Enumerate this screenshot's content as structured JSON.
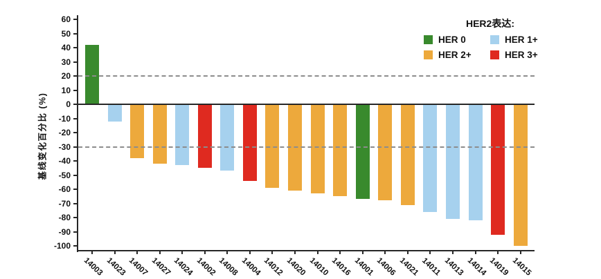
{
  "chart_data": {
    "type": "bar",
    "subtype": "waterfall",
    "title": "",
    "xlabel": "",
    "ylabel": "基线变化百分比 (%)",
    "ylim": [
      -100,
      60
    ],
    "y_ticks": [
      60,
      50,
      40,
      30,
      20,
      10,
      0,
      -10,
      -20,
      -30,
      -40,
      -50,
      -60,
      -70,
      -80,
      -90,
      -100
    ],
    "grid": false,
    "x_tick_rotation": 45,
    "reference_lines": [
      {
        "y": 20,
        "style": "dashed",
        "color": "#8c8c8c"
      },
      {
        "y": -30,
        "style": "dashed",
        "color": "#8c8c8c"
      },
      {
        "y": 0,
        "style": "solid",
        "color": "#262626"
      }
    ],
    "legend": {
      "title": "HER2表达:",
      "position": "top-right",
      "items": [
        {
          "label": "HER 0",
          "color": "#398a2d"
        },
        {
          "label": "HER 1+",
          "color": "#a6d1ee"
        },
        {
          "label": "HER 2+",
          "color": "#eda93c"
        },
        {
          "label": "HER 3+",
          "color": "#df2a20"
        }
      ]
    },
    "bars": [
      {
        "id": "14003",
        "value": 42,
        "group": "HER 0"
      },
      {
        "id": "14023",
        "value": -12,
        "group": "HER 1+"
      },
      {
        "id": "14007",
        "value": -38,
        "group": "HER 2+"
      },
      {
        "id": "14027",
        "value": -42,
        "group": "HER 2+"
      },
      {
        "id": "14024",
        "value": -43,
        "group": "HER 1+"
      },
      {
        "id": "14002",
        "value": -45,
        "group": "HER 3+"
      },
      {
        "id": "14008",
        "value": -47,
        "group": "HER 1+"
      },
      {
        "id": "14004",
        "value": -54,
        "group": "HER 3+"
      },
      {
        "id": "14012",
        "value": -59,
        "group": "HER 2+"
      },
      {
        "id": "14020",
        "value": -61,
        "group": "HER 2+"
      },
      {
        "id": "14010",
        "value": -63,
        "group": "HER 2+"
      },
      {
        "id": "14016",
        "value": -65,
        "group": "HER 2+"
      },
      {
        "id": "14001",
        "value": -67,
        "group": "HER 0"
      },
      {
        "id": "14006",
        "value": -68,
        "group": "HER 2+"
      },
      {
        "id": "14021",
        "value": -71,
        "group": "HER 2+"
      },
      {
        "id": "14011",
        "value": -76,
        "group": "HER 1+"
      },
      {
        "id": "14013",
        "value": -81,
        "group": "HER 1+"
      },
      {
        "id": "14014",
        "value": -82,
        "group": "HER 1+"
      },
      {
        "id": "14019",
        "value": -92,
        "group": "HER 3+"
      },
      {
        "id": "14015",
        "value": -100,
        "group": "HER 2+"
      }
    ]
  }
}
